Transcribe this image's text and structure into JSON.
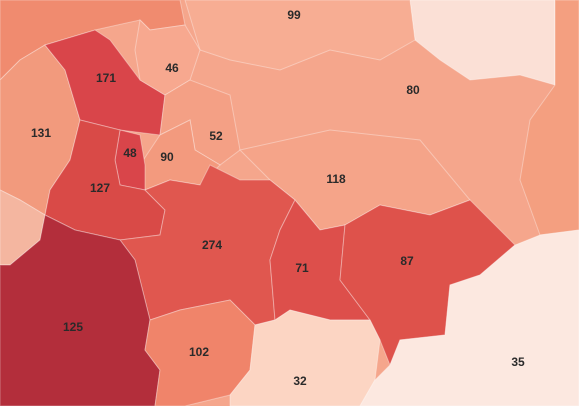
{
  "regions": [
    {
      "label": "99"
    },
    {
      "label": "80"
    },
    {
      "label": "171"
    },
    {
      "label": "46"
    },
    {
      "label": "131"
    },
    {
      "label": "48"
    },
    {
      "label": "90"
    },
    {
      "label": "52"
    },
    {
      "label": "127"
    },
    {
      "label": "118"
    },
    {
      "label": "274"
    },
    {
      "label": "71"
    },
    {
      "label": "87"
    },
    {
      "label": "125"
    },
    {
      "label": "102"
    },
    {
      "label": "32"
    },
    {
      "label": "35"
    }
  ]
}
